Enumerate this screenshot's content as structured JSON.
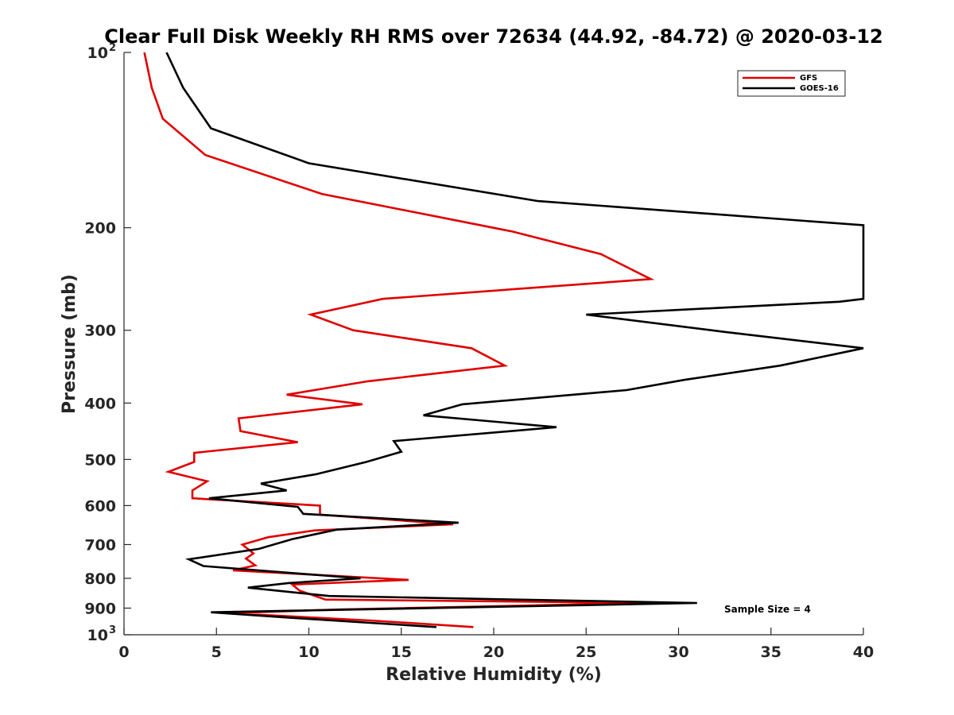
{
  "chart_data": {
    "type": "line",
    "title": "Clear Full Disk Weekly RH RMS over 72634 (44.92, -84.72) @ 2020-03-12",
    "xlabel": "Relative Humidity (%)",
    "ylabel": "Pressure (mb)",
    "xlim": [
      0,
      40
    ],
    "ylim": [
      100,
      1000
    ],
    "yscale": "log",
    "yreversed": true,
    "x_ticks": [
      0,
      5,
      10,
      15,
      20,
      25,
      30,
      35,
      40
    ],
    "x_tick_labels": [
      "0",
      "5",
      "10",
      "15",
      "20",
      "25",
      "30",
      "35",
      "40"
    ],
    "y_ticks": [
      {
        "value": 100,
        "base": "10",
        "exp": "2"
      },
      {
        "value": 200,
        "label": "200"
      },
      {
        "value": 300,
        "label": "300"
      },
      {
        "value": 400,
        "label": "400"
      },
      {
        "value": 500,
        "label": "500"
      },
      {
        "value": 600,
        "label": "600"
      },
      {
        "value": 700,
        "label": "700"
      },
      {
        "value": 800,
        "label": "800"
      },
      {
        "value": 900,
        "label": "900"
      },
      {
        "value": 1000,
        "base": "10",
        "exp": "3"
      }
    ],
    "legend_position": "top-right",
    "annotation": "Sample Size = 4",
    "series": [
      {
        "name": "GFS",
        "color": "#e00000",
        "points": [
          [
            1.1,
            100
          ],
          [
            1.5,
            115
          ],
          [
            2.1,
            130
          ],
          [
            4.4,
            150
          ],
          [
            10.7,
            175
          ],
          [
            21.0,
            203
          ],
          [
            25.8,
            222
          ],
          [
            28.5,
            245
          ],
          [
            14.0,
            265
          ],
          [
            10.1,
            282
          ],
          [
            12.4,
            300
          ],
          [
            18.8,
            322
          ],
          [
            20.6,
            345
          ],
          [
            13.2,
            367
          ],
          [
            8.8,
            387
          ],
          [
            12.9,
            402
          ],
          [
            6.2,
            425
          ],
          [
            6.3,
            447
          ],
          [
            9.4,
            467
          ],
          [
            3.8,
            487
          ],
          [
            3.8,
            505
          ],
          [
            2.4,
            525
          ],
          [
            4.5,
            545
          ],
          [
            3.7,
            565
          ],
          [
            3.7,
            583
          ],
          [
            10.6,
            600
          ],
          [
            10.6,
            622
          ],
          [
            17.8,
            646
          ],
          [
            10.3,
            662
          ],
          [
            7.8,
            680
          ],
          [
            6.4,
            700
          ],
          [
            7.0,
            725
          ],
          [
            6.6,
            740
          ],
          [
            7.1,
            760
          ],
          [
            5.9,
            775
          ],
          [
            15.4,
            805
          ],
          [
            9.1,
            820
          ],
          [
            9.5,
            840
          ],
          [
            10.9,
            870
          ],
          [
            28.3,
            882
          ],
          [
            11.6,
            905
          ],
          [
            5.6,
            918
          ],
          [
            13.3,
            945
          ],
          [
            18.9,
            970
          ]
        ]
      },
      {
        "name": "GOES-16",
        "color": "#000000",
        "points": [
          [
            2.3,
            100
          ],
          [
            3.2,
            115
          ],
          [
            4.7,
            135
          ],
          [
            10.0,
            155
          ],
          [
            22.4,
            180
          ],
          [
            40.0,
            198
          ],
          [
            40.0,
            265
          ],
          [
            38.7,
            268
          ],
          [
            25.0,
            282
          ],
          [
            32.5,
            302
          ],
          [
            40.0,
            322
          ],
          [
            35.5,
            345
          ],
          [
            30.3,
            365
          ],
          [
            27.2,
            380
          ],
          [
            18.3,
            402
          ],
          [
            16.2,
            420
          ],
          [
            23.4,
            440
          ],
          [
            14.6,
            465
          ],
          [
            15.0,
            485
          ],
          [
            13.1,
            505
          ],
          [
            10.4,
            530
          ],
          [
            7.4,
            550
          ],
          [
            8.8,
            565
          ],
          [
            4.6,
            583
          ],
          [
            9.4,
            603
          ],
          [
            9.7,
            620
          ],
          [
            18.1,
            642
          ],
          [
            11.5,
            660
          ],
          [
            9.1,
            685
          ],
          [
            7.3,
            712
          ],
          [
            3.5,
            742
          ],
          [
            4.3,
            762
          ],
          [
            12.8,
            800
          ],
          [
            8.9,
            815
          ],
          [
            6.7,
            830
          ],
          [
            11.1,
            858
          ],
          [
            31.0,
            882
          ],
          [
            4.7,
            915
          ],
          [
            9.0,
            935
          ],
          [
            16.9,
            970
          ]
        ]
      }
    ]
  }
}
